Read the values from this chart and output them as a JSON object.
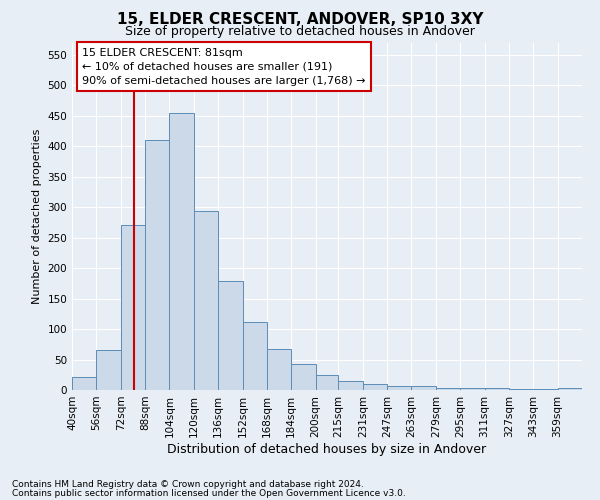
{
  "title1": "15, ELDER CRESCENT, ANDOVER, SP10 3XY",
  "title2": "Size of property relative to detached houses in Andover",
  "xlabel": "Distribution of detached houses by size in Andover",
  "ylabel": "Number of detached properties",
  "footnote1": "Contains HM Land Registry data © Crown copyright and database right 2024.",
  "footnote2": "Contains public sector information licensed under the Open Government Licence v3.0.",
  "annotation_line1": "15 ELDER CRESCENT: 81sqm",
  "annotation_line2": "← 10% of detached houses are smaller (191)",
  "annotation_line3": "90% of semi-detached houses are larger (1,768) →",
  "bar_color": "#ccd9e8",
  "bar_edge_color": "#5b8db8",
  "vline_color": "#cc0000",
  "vline_x": 81,
  "categories": [
    "40sqm",
    "56sqm",
    "72sqm",
    "88sqm",
    "104sqm",
    "120sqm",
    "136sqm",
    "152sqm",
    "168sqm",
    "184sqm",
    "200sqm",
    "215sqm",
    "231sqm",
    "247sqm",
    "263sqm",
    "279sqm",
    "295sqm",
    "311sqm",
    "327sqm",
    "343sqm",
    "359sqm"
  ],
  "bin_edges": [
    40,
    56,
    72,
    88,
    104,
    120,
    136,
    152,
    168,
    184,
    200,
    215,
    231,
    247,
    263,
    279,
    295,
    311,
    327,
    343,
    359,
    375
  ],
  "values": [
    22,
    65,
    270,
    410,
    455,
    293,
    178,
    112,
    68,
    43,
    24,
    14,
    10,
    6,
    6,
    3,
    4,
    3,
    2,
    1,
    3
  ],
  "ylim": [
    0,
    570
  ],
  "yticks": [
    0,
    50,
    100,
    150,
    200,
    250,
    300,
    350,
    400,
    450,
    500,
    550
  ],
  "background_color": "#e8eef5",
  "grid_color": "#ffffff",
  "annotation_box_color": "#ffffff",
  "annotation_box_edge": "#cc0000",
  "title1_fontsize": 11,
  "title2_fontsize": 9,
  "ylabel_fontsize": 8,
  "xlabel_fontsize": 9,
  "footnote_fontsize": 6.5,
  "tick_fontsize": 7.5,
  "annot_fontsize": 8
}
